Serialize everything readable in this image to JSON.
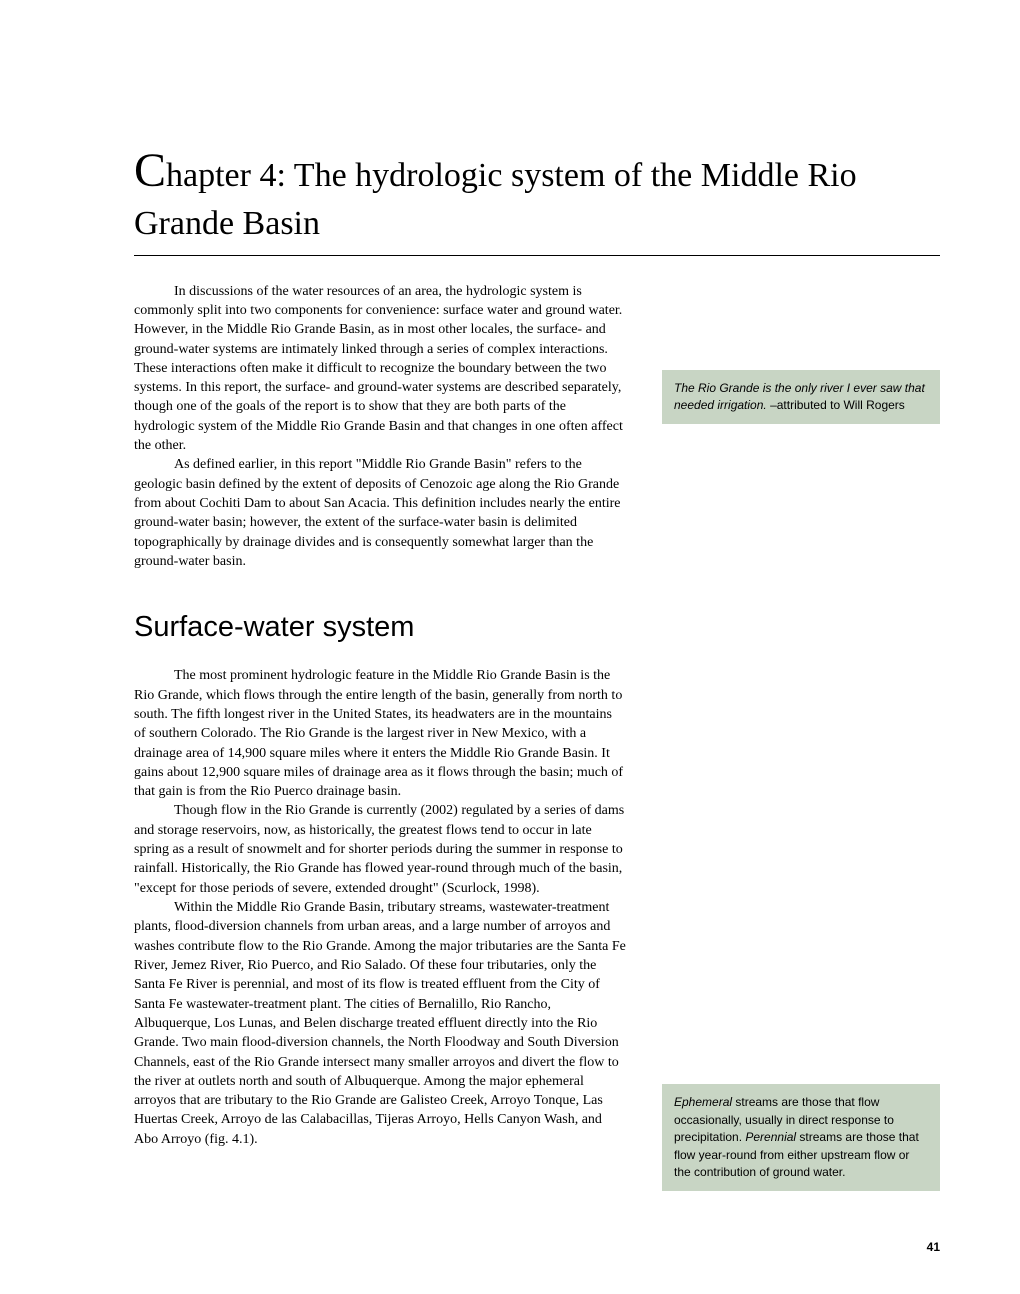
{
  "chapter": {
    "title_prefix": "C",
    "title_rest": "hapter 4: The hydrologic system of the Middle Rio Grande Basin"
  },
  "intro": {
    "p1": "In discussions of the water resources of an area, the hydrologic system is commonly split into two components for convenience: surface water and ground water. However, in the Middle Rio Grande Basin, as in most other locales, the surface- and ground-water systems are intimately linked through a series of complex interactions. These interactions often make it difficult to recognize the boundary between the two systems. In this report, the surface- and ground-water systems are described separately, though one of the goals of the report is to show that they are both parts of the hydrologic system of the Middle Rio Grande Basin and that changes in one often affect the other.",
    "p2": "As defined earlier, in this report \"Middle Rio Grande Basin\" refers to the geologic basin defined by the extent of deposits of Cenozoic age along the Rio Grande from about Cochiti Dam to about San Acacia. This definition includes nearly the entire ground-water basin; however, the extent of the surface-water basin is delimited topographically by drainage divides and is consequently somewhat larger than the ground-water basin."
  },
  "section1": {
    "heading": "Surface-water system",
    "p1": "The most prominent hydrologic feature in the Middle Rio Grande Basin is the Rio Grande, which flows through the entire length of the basin, generally from north to south. The fifth longest river in the United States, its headwaters are in the mountains of southern Colorado. The Rio Grande is the largest river in New Mexico, with a drainage area of 14,900 square miles where it enters the Middle Rio Grande Basin. It gains about 12,900 square miles of drainage area as it flows through the basin; much of that gain is from the Rio Puerco drainage basin.",
    "p2": "Though flow in the Rio Grande is currently (2002) regulated by a series of dams and storage reservoirs, now, as historically, the greatest flows tend to occur in late spring as a result of snowmelt and for shorter periods during the summer in response to rainfall. Historically, the Rio Grande has flowed year-round through much of the basin, \"except for those periods of severe, extended drought\" (Scurlock, 1998).",
    "p3": "Within the Middle Rio Grande Basin, tributary streams, wastewater-treatment plants, flood-diversion channels from urban areas, and a large number of arroyos and washes contribute flow to the Rio Grande. Among the major tributaries are the Santa Fe River, Jemez River, Rio Puerco, and Rio Salado. Of these four tributaries, only the Santa Fe River is perennial, and most of its flow is treated effluent from the City of Santa Fe wastewater-treatment plant. The cities of Bernalillo, Rio Rancho, Albuquerque, Los Lunas, and Belen discharge treated effluent directly into the Rio Grande. Two main flood-diversion channels, the North Floodway and South Diversion Channels, east of the Rio Grande intersect many smaller arroyos and divert the flow to the river at outlets north and south of Albuquerque. Among the major ephemeral arroyos that are tributary to the Rio Grande are Galisteo Creek, Arroyo Tonque, Las Huertas Creek, Arroyo de las Calabacillas, Tijeras Arroyo, Hells Canyon Wash, and Abo Arroyo (fig. 4.1)."
  },
  "sidebar": {
    "quote1_italic": "The Rio Grande is the only river I ever saw that needed irrigation.",
    "quote1_attrib": " –attributed to Will Rogers",
    "note2_em1": "Ephemeral",
    "note2_text1": " streams are those that flow occasionally, usually in direct response to precipitation. ",
    "note2_em2": "Perennial",
    "note2_text2": " streams are those that flow year-round from either upstream flow or the contribution of ground water."
  },
  "page_number": "41",
  "colors": {
    "sidebar_bg": "#c8d5c4",
    "text": "#000000",
    "background": "#ffffff"
  }
}
